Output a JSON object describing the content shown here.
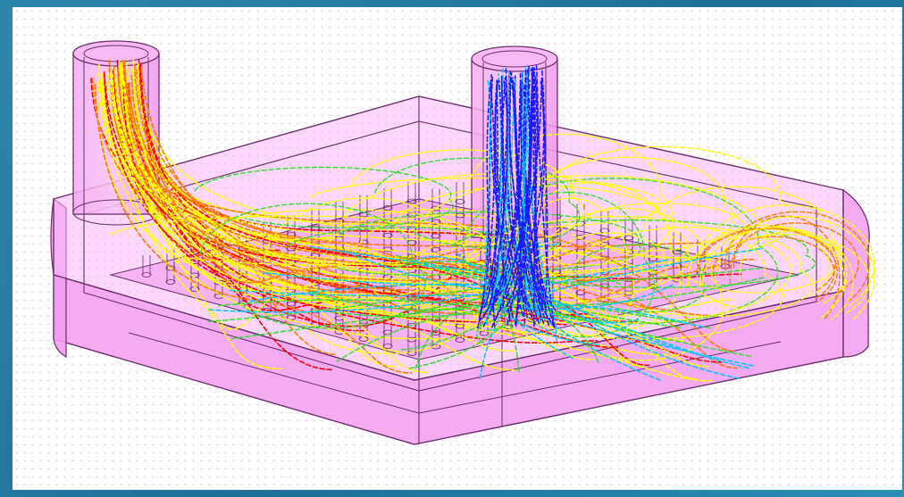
{
  "scene": {
    "subject": "cold-plate-flow-simulation",
    "colors": {
      "housing_fill": "#f29cf0",
      "housing_stroke": "#6b2f6b",
      "canvas_background": "#ffffff",
      "dot_pattern": "#f3c9ee",
      "frame_background": "#2a82ab",
      "streamline_palette": [
        "#ff0000",
        "#ff7a00",
        "#ffff00",
        "#33dd33",
        "#00c8ff",
        "#1a1aff"
      ]
    },
    "elements": {
      "inlet_pipe": "cylindrical-pipe",
      "outlet_pipe": "cylindrical-pipe",
      "housing": "hexagonal-housing",
      "pin_fin_array": "pin-fins",
      "streamlines": "velocity-streamlines"
    }
  }
}
